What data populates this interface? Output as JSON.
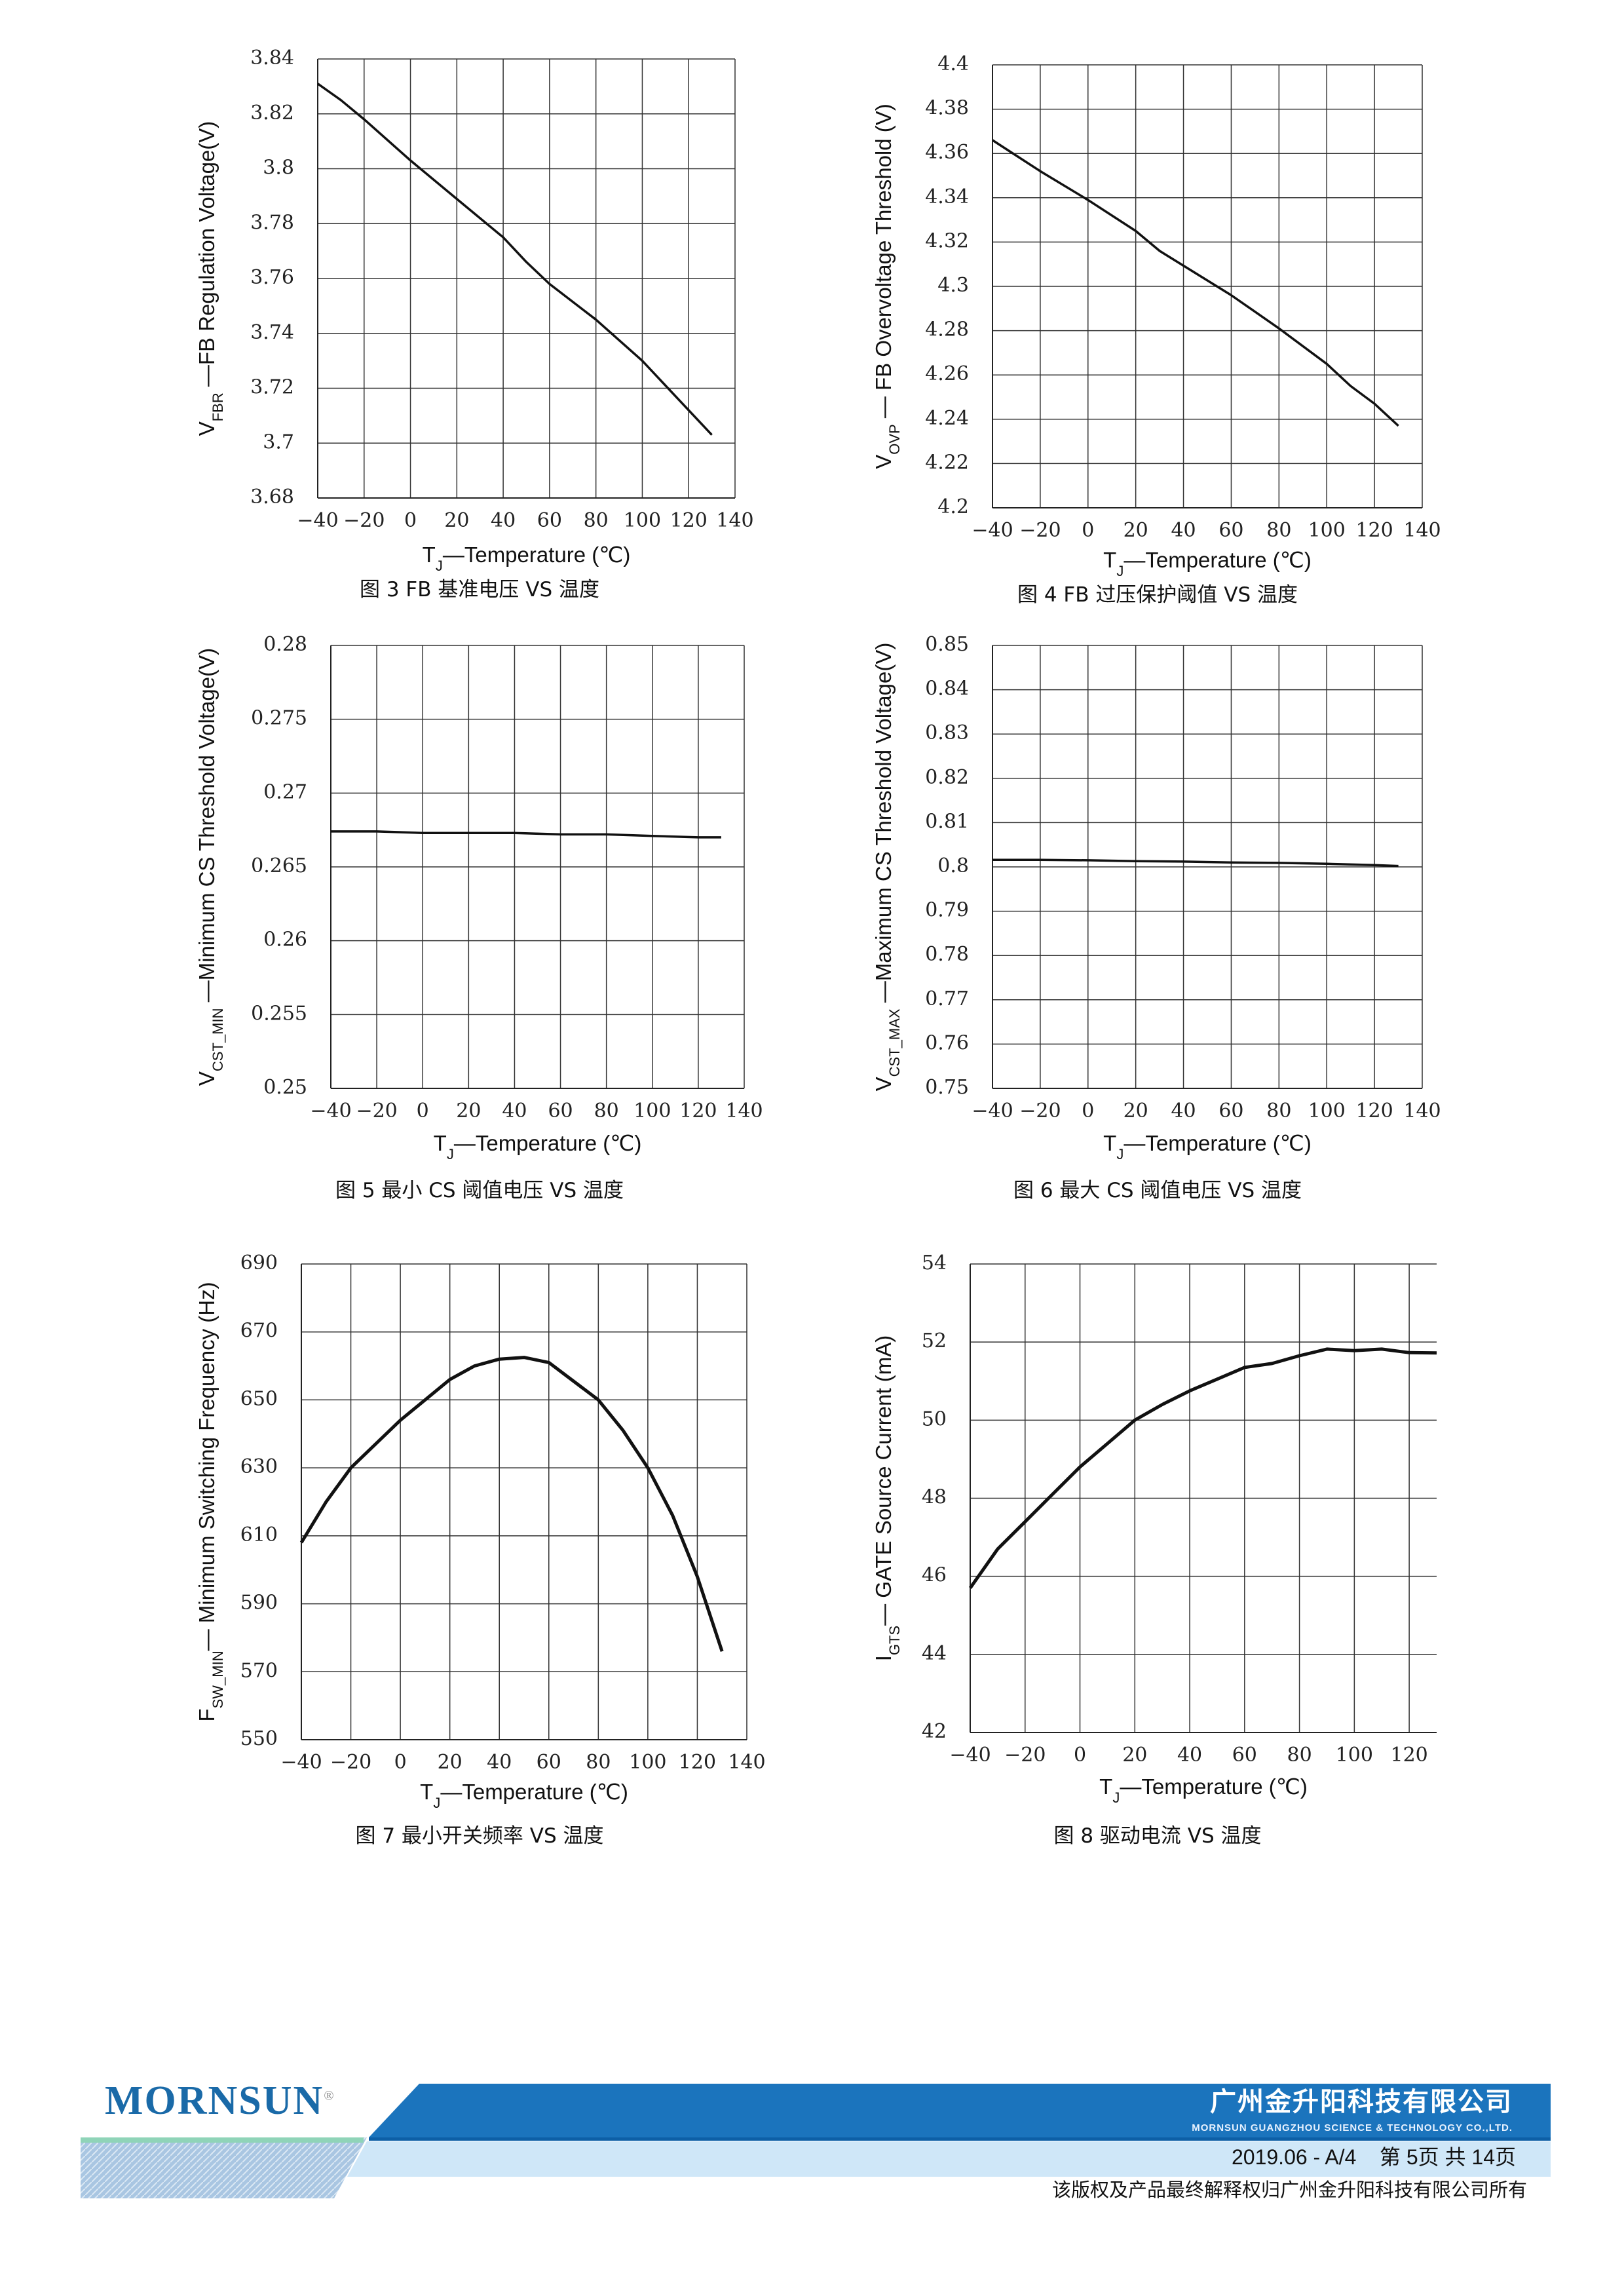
{
  "chart_data": [
    {
      "type": "line",
      "caption": "图 3 FB 基准电压 VS 温度",
      "ylabel": {
        "main": "V",
        "sub": "FBR",
        "rest": " —FB Regulation Voltage(V)"
      },
      "xlabel": {
        "main": "T",
        "sub": "J",
        "rest": "—Temperature (℃)"
      },
      "xlim": [
        -40,
        140
      ],
      "ylim": [
        3.68,
        3.84
      ],
      "grid": true,
      "xticks": [
        "−40",
        "−20",
        "0",
        "20",
        "40",
        "60",
        "80",
        "100",
        "120",
        "140"
      ],
      "xtick_values": [
        -40,
        -20,
        0,
        20,
        40,
        60,
        80,
        100,
        120,
        140
      ],
      "yticks": [
        "3.68",
        "3.7",
        "3.72",
        "3.74",
        "3.76",
        "3.78",
        "3.8",
        "3.82",
        "3.84"
      ],
      "ytick_values": [
        3.68,
        3.7,
        3.72,
        3.74,
        3.76,
        3.78,
        3.8,
        3.82,
        3.84
      ],
      "x": [
        -40,
        -30,
        -20,
        0,
        20,
        40,
        50,
        60,
        80,
        100,
        110,
        130
      ],
      "y": [
        3.831,
        3.825,
        3.818,
        3.803,
        3.789,
        3.775,
        3.766,
        3.758,
        3.745,
        3.73,
        3.721,
        3.703
      ]
    },
    {
      "type": "line",
      "caption": "图 4 FB 过压保护阈值 VS 温度",
      "ylabel": {
        "main": "V",
        "sub": "OVP",
        "rest": " — FB Overvoltage Threshold (V)"
      },
      "xlabel": {
        "main": "T",
        "sub": "J",
        "rest": "—Temperature (℃)"
      },
      "xlim": [
        -40,
        140
      ],
      "ylim": [
        4.2,
        4.4
      ],
      "grid": true,
      "xticks": [
        "−40",
        "−20",
        "0",
        "20",
        "40",
        "60",
        "80",
        "100",
        "120",
        "140"
      ],
      "xtick_values": [
        -40,
        -20,
        0,
        20,
        40,
        60,
        80,
        100,
        120,
        140
      ],
      "yticks": [
        "4.2",
        "4.22",
        "4.24",
        "4.26",
        "4.28",
        "4.3",
        "4.32",
        "4.34",
        "4.36",
        "4.38",
        "4.4"
      ],
      "ytick_values": [
        4.2,
        4.22,
        4.24,
        4.26,
        4.28,
        4.3,
        4.32,
        4.34,
        4.36,
        4.38,
        4.4
      ],
      "x": [
        -40,
        -20,
        0,
        20,
        30,
        60,
        80,
        100,
        110,
        120,
        130
      ],
      "y": [
        4.366,
        4.352,
        4.339,
        4.325,
        4.316,
        4.296,
        4.281,
        4.265,
        4.255,
        4.247,
        4.237
      ]
    },
    {
      "type": "line",
      "caption": "图 5 最小 CS 阈值电压 VS 温度",
      "ylabel": {
        "main": "V",
        "sub": "CST_MIN",
        "rest": " —Minimum CS Threshold Voltage(V)"
      },
      "xlabel": {
        "main": "T",
        "sub": "J",
        "rest": "—Temperature (℃)"
      },
      "xlim": [
        -40,
        140
      ],
      "ylim": [
        0.25,
        0.28
      ],
      "grid": true,
      "xticks": [
        "−40",
        "−20",
        "0",
        "20",
        "40",
        "60",
        "80",
        "100",
        "120",
        "140"
      ],
      "xtick_values": [
        -40,
        -20,
        0,
        20,
        40,
        60,
        80,
        100,
        120,
        140
      ],
      "yticks": [
        "0.25",
        "0.255",
        "0.26",
        "0.265",
        "0.27",
        "0.275",
        "0.28"
      ],
      "ytick_values": [
        0.25,
        0.255,
        0.26,
        0.265,
        0.27,
        0.275,
        0.28
      ],
      "x": [
        -40,
        -20,
        0,
        20,
        40,
        60,
        80,
        100,
        120,
        130
      ],
      "y": [
        0.2674,
        0.2674,
        0.2673,
        0.2673,
        0.2673,
        0.2672,
        0.2672,
        0.2671,
        0.267,
        0.267
      ]
    },
    {
      "type": "line",
      "caption": "图 6 最大 CS 阈值电压 VS 温度",
      "ylabel": {
        "main": "V",
        "sub": "CST_MAX",
        "rest": " —Maximum CS Threshold Voltage(V)"
      },
      "xlabel": {
        "main": "T",
        "sub": "J",
        "rest": "—Temperature (℃)"
      },
      "xlim": [
        -40,
        140
      ],
      "ylim": [
        0.75,
        0.85
      ],
      "grid": true,
      "xticks": [
        "−40",
        "−20",
        "0",
        "20",
        "40",
        "60",
        "80",
        "100",
        "120",
        "140"
      ],
      "xtick_values": [
        -40,
        -20,
        0,
        20,
        40,
        60,
        80,
        100,
        120,
        140
      ],
      "yticks": [
        "0.75",
        "0.76",
        "0.77",
        "0.78",
        "0.79",
        "0.8",
        "0.81",
        "0.82",
        "0.83",
        "0.84",
        "0.85"
      ],
      "ytick_values": [
        0.75,
        0.76,
        0.77,
        0.78,
        0.79,
        0.8,
        0.81,
        0.82,
        0.83,
        0.84,
        0.85
      ],
      "x": [
        -40,
        -20,
        0,
        20,
        40,
        60,
        80,
        100,
        120,
        130
      ],
      "y": [
        0.8016,
        0.8016,
        0.8015,
        0.8013,
        0.8012,
        0.801,
        0.8009,
        0.8007,
        0.8004,
        0.8002
      ]
    },
    {
      "type": "line",
      "caption": "图 7 最小开关频率 VS 温度",
      "ylabel": {
        "main": "F",
        "sub": "SW_MIN",
        "rest": "— Minimum Switching Frequency (Hz)"
      },
      "xlabel": {
        "main": "T",
        "sub": "J",
        "rest": "—Temperature (℃)"
      },
      "xlim": [
        -40,
        140
      ],
      "ylim": [
        550,
        690
      ],
      "grid": true,
      "xticks": [
        "−40",
        "−20",
        "0",
        "20",
        "40",
        "60",
        "80",
        "100",
        "120",
        "140"
      ],
      "xtick_values": [
        -40,
        -20,
        0,
        20,
        40,
        60,
        80,
        100,
        120,
        140
      ],
      "yticks": [
        "550",
        "570",
        "590",
        "610",
        "630",
        "650",
        "670",
        "690"
      ],
      "ytick_values": [
        550,
        570,
        590,
        610,
        630,
        650,
        670,
        690
      ],
      "x": [
        -40,
        -30,
        -20,
        0,
        20,
        30,
        40,
        50,
        60,
        80,
        90,
        100,
        110,
        120,
        130
      ],
      "y": [
        608,
        620,
        630,
        644,
        656,
        660,
        662,
        662.5,
        661,
        650,
        641,
        630,
        616,
        598,
        576
      ]
    },
    {
      "type": "line",
      "caption": "图 8 驱动电流 VS 温度",
      "ylabel": {
        "main": "I",
        "sub": "GTS",
        "rest": "— GATE Source Current (mA)"
      },
      "xlabel": {
        "main": "T",
        "sub": "J",
        "rest": "—Temperature (℃)"
      },
      "xlim": [
        -40,
        130
      ],
      "ylim": [
        42,
        54
      ],
      "grid": true,
      "xticks": [
        "−40",
        "−20",
        "0",
        "20",
        "40",
        "60",
        "80",
        "100",
        "120"
      ],
      "xtick_values": [
        -40,
        -20,
        0,
        20,
        40,
        60,
        80,
        100,
        120
      ],
      "yticks": [
        "42",
        "44",
        "46",
        "48",
        "50",
        "52",
        "54"
      ],
      "ytick_values": [
        42,
        44,
        46,
        48,
        50,
        52,
        54
      ],
      "x": [
        -40,
        -30,
        -20,
        -10,
        0,
        10,
        20,
        30,
        40,
        50,
        60,
        70,
        80,
        90,
        100,
        110,
        120,
        130
      ],
      "y": [
        45.7,
        46.7,
        47.4,
        48.1,
        48.8,
        49.4,
        50.0,
        50.4,
        50.75,
        51.05,
        51.35,
        51.45,
        51.65,
        51.82,
        51.78,
        51.82,
        51.73,
        51.72
      ]
    }
  ],
  "footer": {
    "logo": "MORNSUN",
    "logo_mark": "®",
    "company_cn": "广州金升阳科技有限公司",
    "company_en": "MORNSUN GUANGZHOU SCIENCE & TECHNOLOGY CO.,LTD.",
    "version": "2019.06 - A/4",
    "page": "第 5页  共 14页",
    "copyright": "该版权及产品最终解释权归广州金升阳科技有限公司所有",
    "colors": {
      "band": "#1b74bd",
      "light_band": "#cfe7f8",
      "logo": "#1a6aa8"
    }
  }
}
